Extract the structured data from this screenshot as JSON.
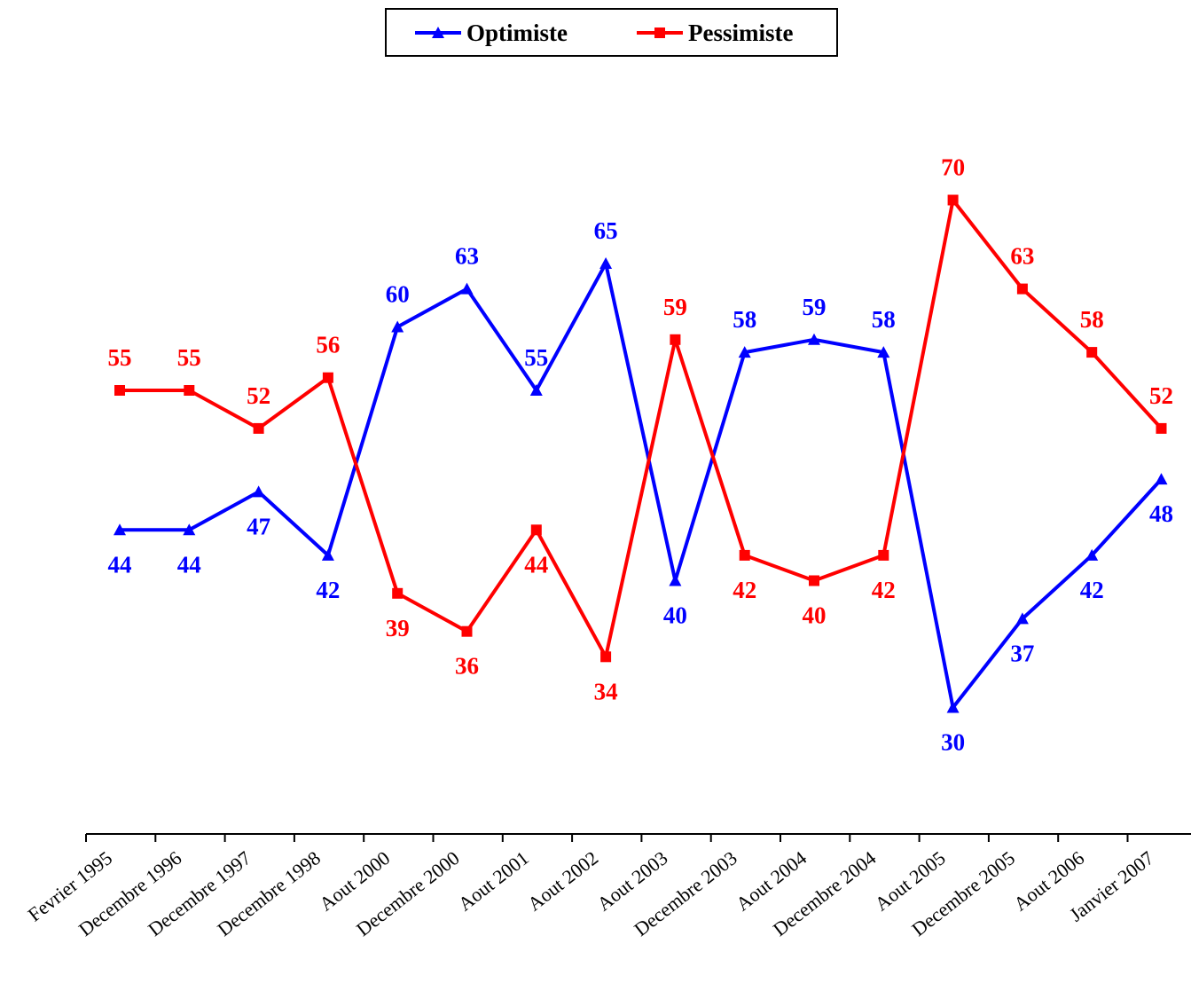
{
  "chart_data": {
    "type": "line",
    "categories": [
      "Fevrier 1995",
      "Decembre 1996",
      "Decembre 1997",
      "Decembre 1998",
      "Aout 2000",
      "Decembre 2000",
      "Aout 2001",
      "Aout 2002",
      "Aout 2003",
      "Decembre 2003",
      "Aout 2004",
      "Decembre 2004",
      "Aout 2005",
      "Decembre 2005",
      "Aout 2006",
      "Janvier 2007"
    ],
    "series": [
      {
        "name": "Optimiste",
        "color": "#0000ff",
        "marker": "triangle",
        "values": [
          44,
          44,
          47,
          42,
          60,
          63,
          55,
          65,
          40,
          58,
          59,
          58,
          30,
          37,
          42,
          48
        ]
      },
      {
        "name": "Pessimiste",
        "color": "#ff0000",
        "marker": "square",
        "values": [
          55,
          55,
          52,
          56,
          39,
          36,
          44,
          34,
          59,
          42,
          40,
          42,
          70,
          63,
          58,
          52
        ]
      }
    ],
    "ylim": [
      20,
      80
    ],
    "grid": false,
    "legend": "top-center",
    "data_labels": true
  }
}
